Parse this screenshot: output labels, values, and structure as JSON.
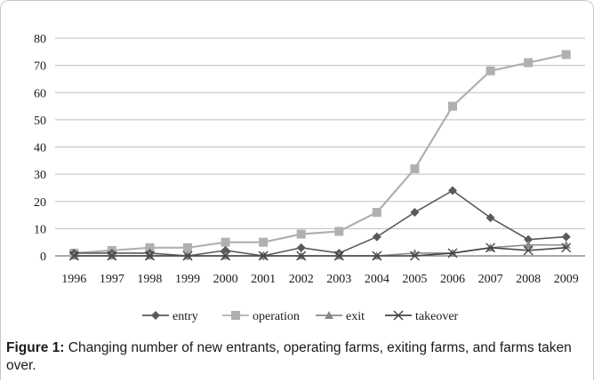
{
  "chart_data": {
    "type": "line",
    "title": "",
    "xlabel": "",
    "ylabel": "",
    "categories": [
      "1996",
      "1997",
      "1998",
      "1999",
      "2000",
      "2001",
      "2002",
      "2003",
      "2004",
      "2005",
      "2006",
      "2007",
      "2008",
      "2009"
    ],
    "ylim": [
      0,
      80
    ],
    "yticks": [
      "0",
      "10",
      "20",
      "30",
      "40",
      "50",
      "60",
      "70",
      "80"
    ],
    "grid": true,
    "legend_position": "bottom",
    "series": [
      {
        "name": "entry",
        "color": "#5a5a5a",
        "marker": "diamond",
        "values": [
          1,
          1,
          1,
          0,
          2,
          0,
          3,
          1,
          7,
          16,
          24,
          14,
          6,
          7
        ]
      },
      {
        "name": "operation",
        "color": "#b0b0b0",
        "marker": "square",
        "values": [
          1,
          2,
          3,
          3,
          5,
          5,
          8,
          9,
          16,
          32,
          55,
          68,
          71,
          74
        ]
      },
      {
        "name": "exit",
        "color": "#8a8a8a",
        "marker": "triangle",
        "values": [
          0,
          0,
          0,
          0,
          0,
          0,
          0,
          0,
          0,
          1,
          1,
          3,
          4,
          4
        ]
      },
      {
        "name": "takeover",
        "color": "#444444",
        "marker": "x",
        "values": [
          0,
          0,
          0,
          0,
          0,
          0,
          0,
          0,
          0,
          0,
          1,
          3,
          2,
          3
        ]
      }
    ]
  },
  "caption": {
    "label": "Figure 1:",
    "text": " Changing number of new entrants, operating farms, exiting farms, and farms taken over."
  }
}
